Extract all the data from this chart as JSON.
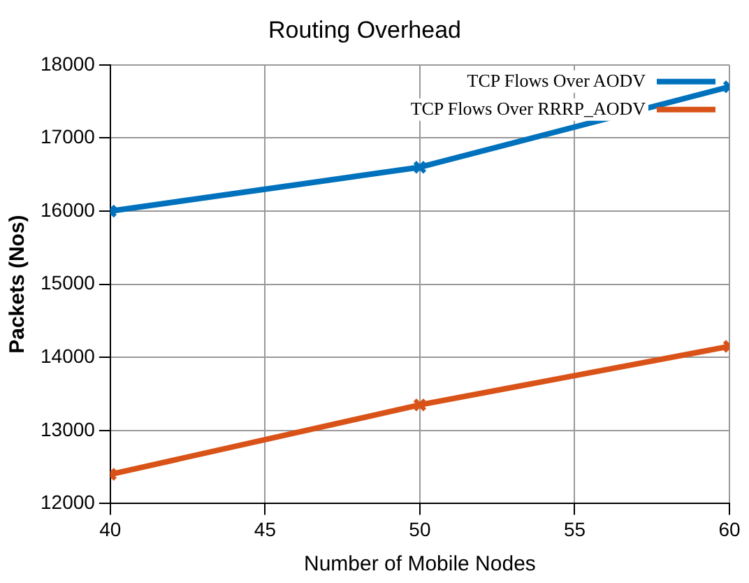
{
  "chart_data": {
    "type": "line",
    "title": "Routing Overhead",
    "xlabel": "Number of Mobile Nodes",
    "ylabel": "Packets (Nos)",
    "x": [
      40,
      50,
      60
    ],
    "series": [
      {
        "name": "TCP Flows Over AODV",
        "color": "#0072bd",
        "values": [
          16000,
          16600,
          17700
        ]
      },
      {
        "name": "TCP Flows Over RRRP_AODV",
        "color": "#d95319",
        "values": [
          12400,
          13350,
          14150
        ]
      }
    ],
    "xlim": [
      40,
      60
    ],
    "xticks": [
      40,
      45,
      50,
      55,
      60
    ],
    "ylim": [
      12000,
      18000
    ],
    "yticks": [
      12000,
      13000,
      14000,
      15000,
      16000,
      17000,
      18000
    ],
    "grid": true,
    "legend": "top right",
    "marker": "cross",
    "line_style": "solid"
  }
}
